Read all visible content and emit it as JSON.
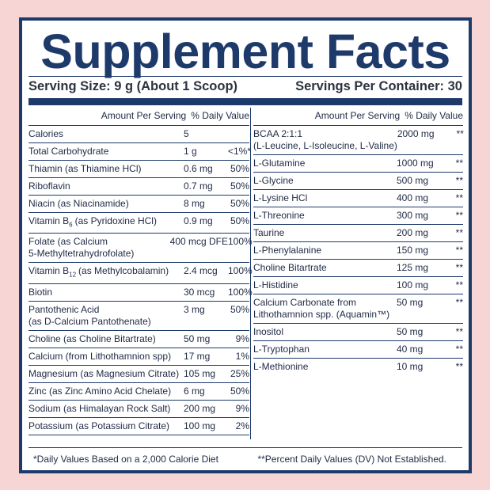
{
  "header": {
    "title": "Supplement Facts",
    "serving_size": "Serving Size: 9 g (About 1 Scoop)",
    "servings_per_container": "Servings Per Container: 30"
  },
  "left": {
    "col_amount": "Amount Per Serving",
    "col_dv": "% Daily Value",
    "rows": [
      {
        "name": [
          "Calories"
        ],
        "amount": "5"
      },
      {
        "name": [
          "Total Carbohydrate"
        ],
        "amount": "1 g",
        "dv": "<1%*"
      },
      {
        "name": [
          "Thiamin (as Thiamine HCl)"
        ],
        "amount": "0.6 mg",
        "dv": "50%"
      },
      {
        "name": [
          "Riboflavin"
        ],
        "amount": "0.7 mg",
        "dv": "50%"
      },
      {
        "name": [
          "Niacin (as Niacinamide)"
        ],
        "amount": "8 mg",
        "dv": "50%"
      },
      {
        "name": [
          "Vitamin B"
        ],
        "sub": "6",
        "name_after": "(as Pyridoxine HCl)",
        "amount": "0.9 mg",
        "dv": "50%"
      },
      {
        "name": [
          "Folate (as Calcium",
          "5-Methyltetrahydrofolate)"
        ],
        "amount": "400 mcg DFE",
        "dv": "100%"
      },
      {
        "name": [
          "Vitamin B"
        ],
        "sub": "12",
        "name_after": "(as Methylcobalamin)",
        "amount": "2.4 mcg",
        "dv": "100%"
      },
      {
        "name": [
          "Biotin"
        ],
        "amount": "30 mcg",
        "dv": "100%"
      },
      {
        "name": [
          "Pantothenic Acid",
          "(as D-Calcium Pantothenate)"
        ],
        "amount": "3 mg",
        "dv": "50%"
      },
      {
        "name": [
          "Choline (as Choline Bitartrate)"
        ],
        "amount": "50 mg",
        "dv": "9%"
      },
      {
        "name": [
          "Calcium (from Lithothamnion spp)"
        ],
        "amount": "17 mg",
        "dv": "1%"
      },
      {
        "name": [
          "Magnesium (as Magnesium Citrate)"
        ],
        "amount": "105 mg",
        "dv": "25%"
      },
      {
        "name": [
          "Zinc (as Zinc Amino Acid Chelate)"
        ],
        "amount": "6 mg",
        "dv": "50%"
      },
      {
        "name": [
          "Sodium (as Himalayan Rock Salt)"
        ],
        "amount": "200 mg",
        "dv": "9%"
      },
      {
        "name": [
          "Potassium (as Potassium Citrate)"
        ],
        "amount": "100 mg",
        "dv": "2%"
      }
    ]
  },
  "right": {
    "col_amount": "Amount Per Serving",
    "col_dv": "% Daily Value",
    "rows": [
      {
        "name": [
          "BCAA 2:1:1",
          "(L-Leucine, L-Isoleucine, L-Valine)"
        ],
        "amount": "2000 mg",
        "dv": "**"
      },
      {
        "name": [
          "L-Glutamine"
        ],
        "amount": "1000 mg",
        "dv": "**"
      },
      {
        "name": [
          "L-Glycine"
        ],
        "amount": "500 mg",
        "dv": "**"
      },
      {
        "name": [
          "L-Lysine HCl"
        ],
        "amount": "400 mg",
        "dv": "**"
      },
      {
        "name": [
          "L-Threonine"
        ],
        "amount": "300 mg",
        "dv": "**"
      },
      {
        "name": [
          "Taurine"
        ],
        "amount": "200 mg",
        "dv": "**"
      },
      {
        "name": [
          "L-Phenylalanine"
        ],
        "amount": "150 mg",
        "dv": "**"
      },
      {
        "name": [
          "Choline Bitartrate"
        ],
        "amount": "125 mg",
        "dv": "**"
      },
      {
        "name": [
          "L-Histidine"
        ],
        "amount": "100 mg",
        "dv": "**"
      },
      {
        "name": [
          "Calcium Carbonate from",
          "Lithothamnion spp. (Aquamin™)"
        ],
        "amount": "50 mg",
        "dv": "**"
      },
      {
        "name": [
          "Inositol"
        ],
        "amount": "50 mg",
        "dv": "**"
      },
      {
        "name": [
          "L-Tryptophan"
        ],
        "amount": "40 mg",
        "dv": "**"
      },
      {
        "name": [
          "L-Methionine"
        ],
        "amount": "10 mg",
        "dv": "**"
      }
    ]
  },
  "footer": {
    "note_left": "*Daily Values Based on a 2,000 Calorie Diet",
    "note_right": "**Percent Daily Values (DV) Not Established."
  }
}
